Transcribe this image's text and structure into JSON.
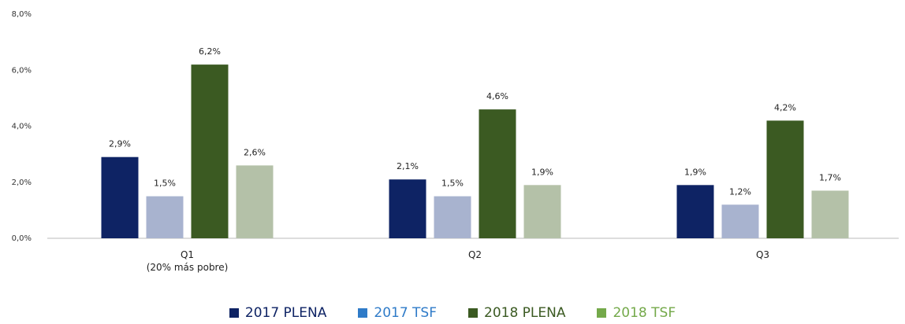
{
  "chart_data": {
    "type": "bar",
    "categories": [
      "Q1\n(20% más pobre)",
      "Q2",
      "Q3"
    ],
    "series": [
      {
        "name": "2017 PLENA",
        "color": "#0e2364",
        "legend_color": "#0e2364",
        "values": [
          2.9,
          2.1,
          1.9
        ],
        "value_labels": [
          "2,9%",
          "2,1%",
          "1,9%"
        ]
      },
      {
        "name": "2017 TSF",
        "color": "#a8b3cf",
        "legend_color": "#2f7bc8",
        "values": [
          1.5,
          1.5,
          1.2
        ],
        "value_labels": [
          "1,5%",
          "1,5%",
          "1,2%"
        ]
      },
      {
        "name": "2018 PLENA",
        "color": "#3b5a22",
        "legend_color": "#3b5a22",
        "values": [
          6.2,
          4.6,
          4.2
        ],
        "value_labels": [
          "6,2%",
          "4,6%",
          "4,2%"
        ]
      },
      {
        "name": "2018 TSF",
        "color": "#b4c1a8",
        "legend_color": "#74a94a",
        "values": [
          2.6,
          1.9,
          1.7
        ],
        "value_labels": [
          "2,6%",
          "1,9%",
          "1,7%"
        ]
      }
    ],
    "ylim": [
      0,
      8
    ],
    "yticks": [
      {
        "value": 0,
        "label": "0,0%"
      },
      {
        "value": 2,
        "label": "2,0%"
      },
      {
        "value": 4,
        "label": "4,0%"
      },
      {
        "value": 6,
        "label": "6,0%"
      },
      {
        "value": 8,
        "label": "8,0%"
      }
    ],
    "grid": false,
    "legend": "bottom"
  }
}
